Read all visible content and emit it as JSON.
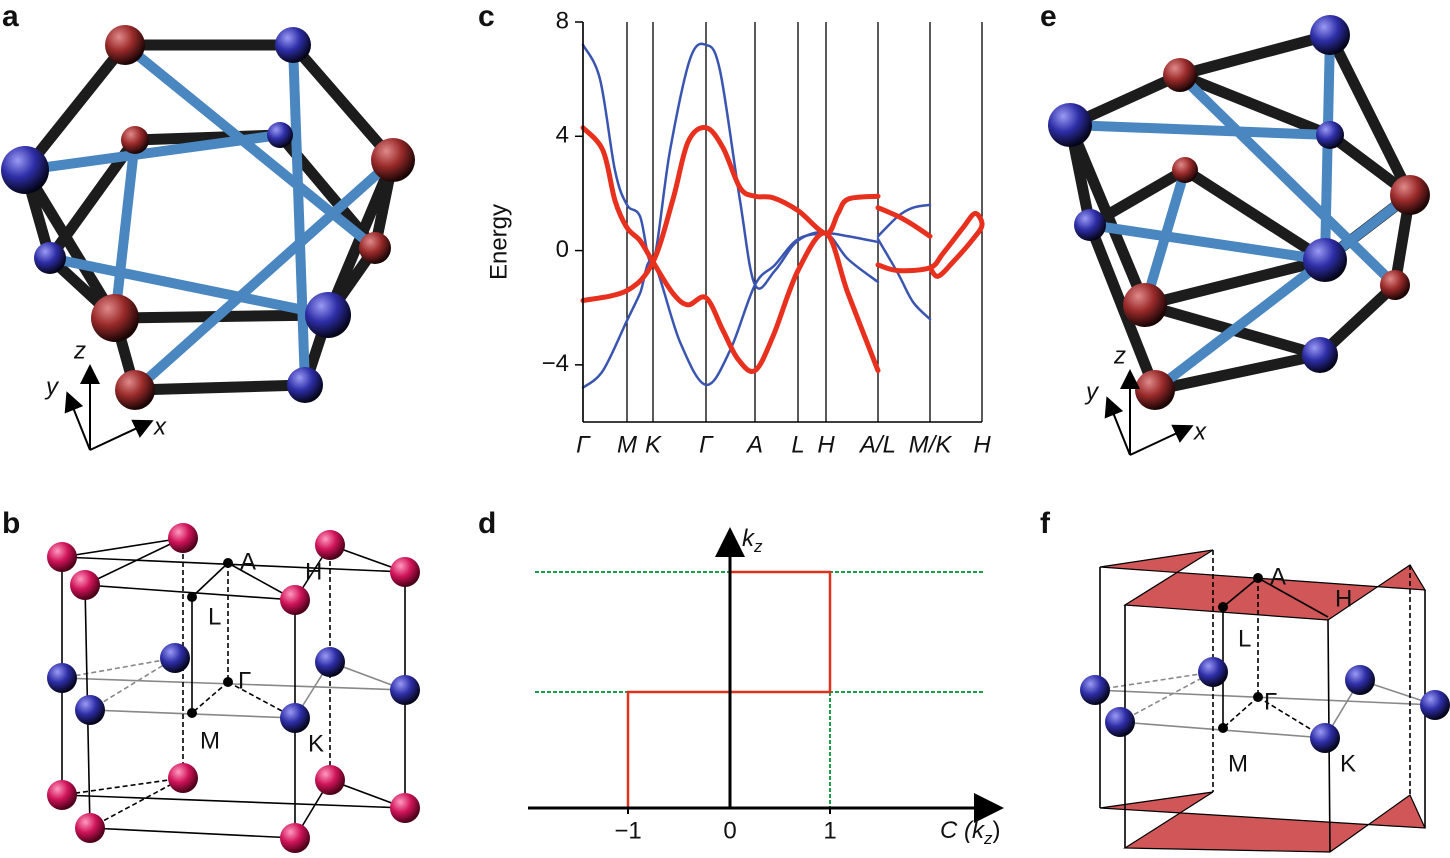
{
  "panel_labels": [
    "a",
    "b",
    "c",
    "d",
    "e",
    "f"
  ],
  "chart_data": {
    "type": "line",
    "ylabel": "Energy",
    "xlim": [
      0,
      39.9
    ],
    "ylim": [
      -6,
      8
    ],
    "xticks": [
      {
        "value": 0,
        "label": "Γ"
      },
      {
        "value": 4.4,
        "label": "M"
      },
      {
        "value": 7.0,
        "label": "K"
      },
      {
        "value": 12.3,
        "label": "Γ"
      },
      {
        "value": 17.2,
        "label": "A"
      },
      {
        "value": 21.5,
        "label": "L"
      },
      {
        "value": 24.3,
        "label": "H"
      },
      {
        "value": 29.5,
        "label": "A/L"
      },
      {
        "value": 34.7,
        "label": "M/K"
      },
      {
        "value": 39.9,
        "label": "H"
      }
    ],
    "yticks": [
      {
        "value": -4,
        "label": "−4"
      },
      0,
      4,
      8
    ],
    "series": [
      {
        "color": "#3a55b0",
        "width": 2.5,
        "x": [
          0,
          1.7,
          3.2,
          4.4,
          5.7,
          7.0,
          8.7,
          10.7,
          12.3,
          13.7,
          15.7,
          17.2,
          19.2,
          21.5,
          24.3,
          26.5,
          29.5,
          29.5,
          29.5,
          31.5,
          33,
          34.7
        ],
        "values": [
          7.2,
          6,
          2.8,
          1.6,
          1.2,
          -0.4,
          3.5,
          6.7,
          7.2,
          6.3,
          1.75,
          -1.2,
          -0.7,
          0.35,
          0.6,
          -0.3,
          -1.1,
          null,
          0.5,
          1.2,
          1.5,
          1.6
        ]
      },
      {
        "color": "#3a55b0",
        "width": 2.5,
        "x": [
          0,
          2,
          4.4,
          5.7,
          7.0,
          9.7,
          12.3,
          14.7,
          17.2,
          19.2,
          21.5,
          24.3,
          26.5,
          29.5,
          29.5,
          29.5,
          31.5,
          33,
          34.7
        ],
        "values": [
          -4.8,
          -4.2,
          -2.45,
          -1.5,
          -0.4,
          -3.2,
          -4.7,
          -3.5,
          -1.2,
          -0.5,
          0.4,
          0.6,
          0.5,
          0.3,
          null,
          0.4,
          -0.8,
          -1.8,
          -2.4
        ]
      },
      {
        "color": "#e8301e",
        "width": 5,
        "x": [
          0,
          2,
          3.2,
          4.4,
          5.7,
          7.0,
          9,
          10.5,
          12.3,
          14,
          15.5,
          17.2,
          19,
          21.5,
          24.3,
          26.5,
          29.5,
          29.5,
          29.5,
          31.5,
          34.7,
          36,
          38,
          39.2,
          39.9,
          39,
          37,
          35.5,
          34.7
        ],
        "values": [
          4.3,
          3.5,
          1.75,
          0.8,
          0.35,
          -0.4,
          -1.5,
          -1.9,
          -1.65,
          -2.8,
          -3.8,
          -4.2,
          -3,
          -0.7,
          0.6,
          -1.5,
          -4.2,
          null,
          -0.5,
          -0.7,
          -0.6,
          -0.1,
          0.8,
          1.3,
          0.9,
          0.4,
          -0.4,
          -0.9,
          -0.6
        ]
      },
      {
        "color": "#e8301e",
        "width": 5,
        "x": [
          0,
          4.4,
          7.0,
          9,
          10.5,
          12.3,
          14,
          15.7,
          17.2,
          19,
          21.5,
          24.3,
          25.5,
          26.5,
          29.5,
          29.5,
          29.5,
          31.5,
          33,
          34.7
        ],
        "values": [
          -1.75,
          -1.4,
          -0.4,
          1.8,
          3.8,
          4.3,
          3.6,
          2.2,
          1.9,
          1.85,
          1.4,
          0.6,
          1.3,
          1.8,
          1.9,
          null,
          1.5,
          1.2,
          0.9,
          0.5
        ]
      }
    ]
  },
  "panel_a": {
    "axes": [
      "x",
      "y",
      "z"
    ]
  },
  "panel_e": {
    "axes": [
      "x",
      "y",
      "z"
    ]
  },
  "panel_b": {
    "points": [
      "A",
      "H",
      "L",
      "Γ",
      "M",
      "K"
    ]
  },
  "panel_f": {
    "points": [
      "A",
      "H",
      "L",
      "Γ",
      "M",
      "K"
    ]
  },
  "panel_d": {
    "y_label": [
      "k",
      "z"
    ],
    "x_label": [
      "C (",
      "k",
      "z",
      ")"
    ],
    "ticks": [
      "−1",
      "0",
      "1"
    ]
  }
}
